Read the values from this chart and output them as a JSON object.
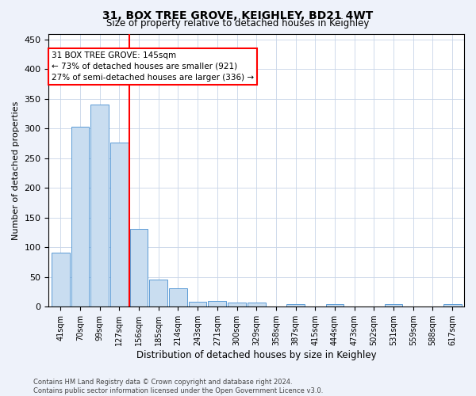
{
  "title": "31, BOX TREE GROVE, KEIGHLEY, BD21 4WT",
  "subtitle": "Size of property relative to detached houses in Keighley",
  "xlabel": "Distribution of detached houses by size in Keighley",
  "ylabel": "Number of detached properties",
  "bar_labels": [
    "41sqm",
    "70sqm",
    "99sqm",
    "127sqm",
    "156sqm",
    "185sqm",
    "214sqm",
    "243sqm",
    "271sqm",
    "300sqm",
    "329sqm",
    "358sqm",
    "387sqm",
    "415sqm",
    "444sqm",
    "473sqm",
    "502sqm",
    "531sqm",
    "559sqm",
    "588sqm",
    "617sqm"
  ],
  "bar_values": [
    91,
    303,
    340,
    277,
    131,
    46,
    31,
    9,
    10,
    7,
    7,
    0,
    5,
    0,
    4,
    0,
    0,
    4,
    0,
    0,
    4
  ],
  "bar_color": "#c9ddf0",
  "bar_edge_color": "#5b9bd5",
  "vline_x_idx": 3.5,
  "vline_color": "red",
  "annotation_text": "31 BOX TREE GROVE: 145sqm\n← 73% of detached houses are smaller (921)\n27% of semi-detached houses are larger (336) →",
  "annotation_box_color": "white",
  "annotation_box_edge": "red",
  "ylim": [
    0,
    460
  ],
  "yticks": [
    0,
    50,
    100,
    150,
    200,
    250,
    300,
    350,
    400,
    450
  ],
  "footer_line1": "Contains HM Land Registry data © Crown copyright and database right 2024.",
  "footer_line2": "Contains public sector information licensed under the Open Government Licence v3.0.",
  "bg_color": "#eef2fa",
  "plot_bg_color": "#ffffff",
  "grid_color": "#c8d4e8"
}
